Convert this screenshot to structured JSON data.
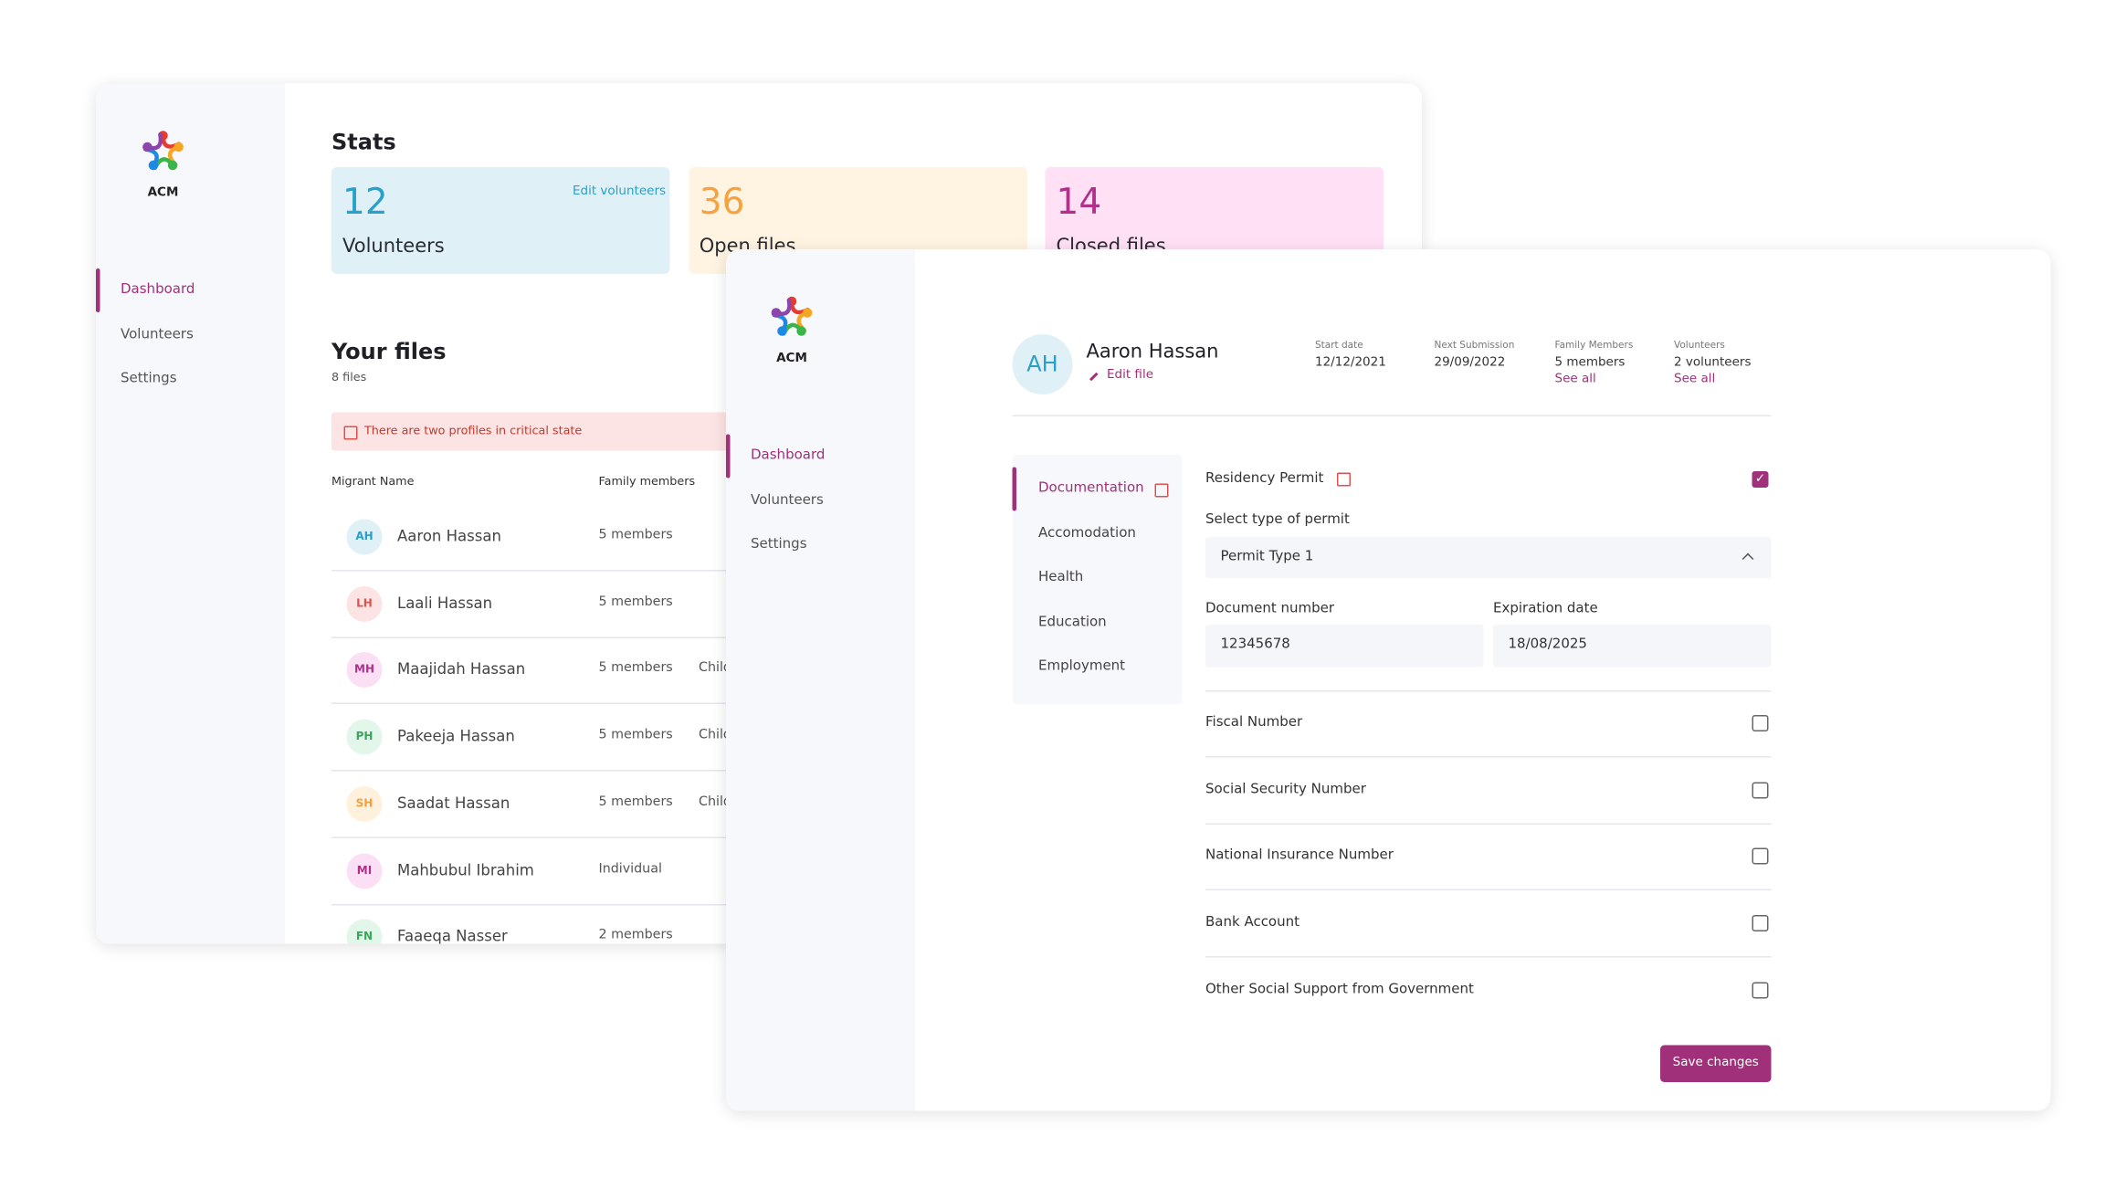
{
  "back": {
    "logo": "ACM",
    "nav": [
      "Dashboard",
      "Volunteers",
      "Settings"
    ],
    "stats_title": "Stats",
    "cards": [
      {
        "value": "12",
        "label": "Volunteers",
        "action": "Edit volunteers"
      },
      {
        "value": "36",
        "label": "Open files"
      },
      {
        "value": "14",
        "label": "Closed files"
      }
    ],
    "files_title": "Your files",
    "files_count": "8 files",
    "alert": "There are two profiles in critical state",
    "columns": [
      "Migrant Name",
      "Family members"
    ],
    "rows": [
      {
        "initials": "AH",
        "name": "Aaron Hassan",
        "family": "5 members"
      },
      {
        "initials": "LH",
        "name": "Laali Hassan",
        "family": "5 members"
      },
      {
        "initials": "MH",
        "name": "Maajidah Hassan",
        "family": "5 members",
        "extra": "Children"
      },
      {
        "initials": "PH",
        "name": "Pakeeja Hassan",
        "family": "5 members",
        "extra": "Children"
      },
      {
        "initials": "SH",
        "name": "Saadat Hassan",
        "family": "5 members",
        "extra": "Children"
      },
      {
        "initials": "MI",
        "name": "Mahbubul Ibrahim",
        "family": "Individual"
      },
      {
        "initials": "FN",
        "name": "Faaeqa Nasser",
        "family": "2 members"
      }
    ]
  },
  "front": {
    "logo": "ACM",
    "nav": [
      "Dashboard",
      "Volunteers",
      "Settings"
    ],
    "profile": {
      "initials": "AH",
      "name": "Aaron Hassan",
      "edit": "Edit file",
      "meta": [
        {
          "label": "Start date",
          "value": "12/12/2021"
        },
        {
          "label": "Next Submission",
          "value": "29/09/2022"
        },
        {
          "label": "Family Members",
          "value": "5 members",
          "link": "See all"
        },
        {
          "label": "Volunteers",
          "value": "2 volunteers",
          "link": "See all"
        }
      ]
    },
    "tabs": [
      "Documentation",
      "Accomodation",
      "Health",
      "Education",
      "Employment"
    ],
    "form": {
      "permit": "Residency Permit",
      "select_label": "Select type of permit",
      "select_value": "Permit Type 1",
      "doc_label": "Document number",
      "doc_value": "12345678",
      "exp_label": "Expiration date",
      "exp_value": "18/08/2025",
      "items": [
        "Fiscal Number",
        "Social Security Number",
        "National Insurance Number",
        "Bank Account",
        "Other Social Support from Government"
      ],
      "button": "Save changes"
    }
  }
}
